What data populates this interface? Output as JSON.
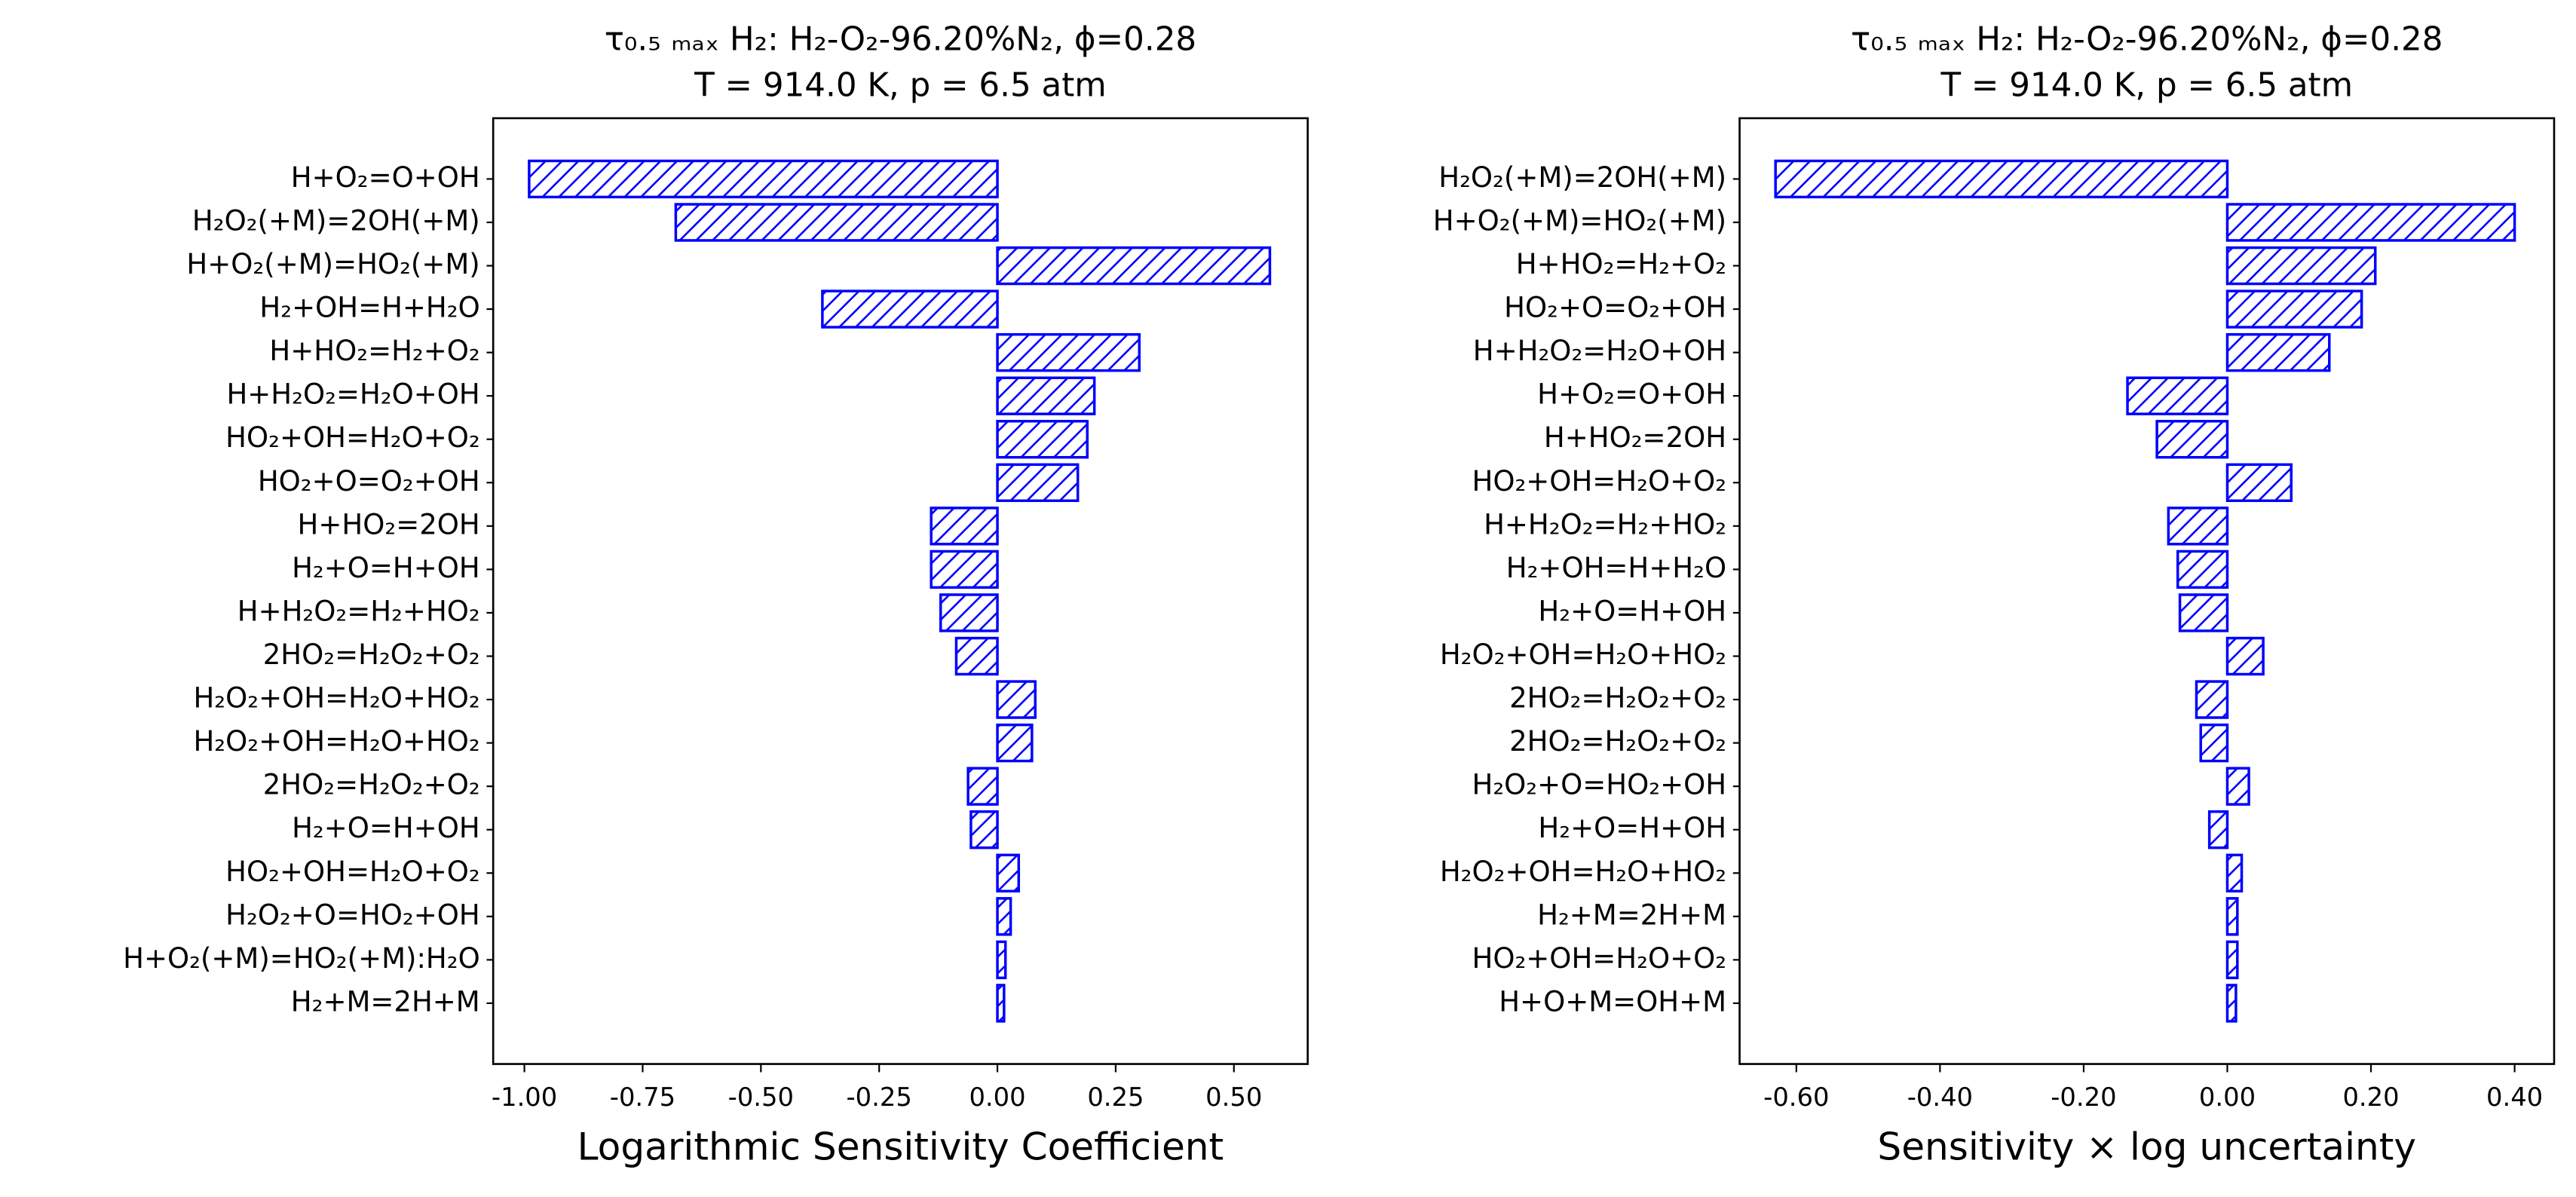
{
  "chart_data": [
    {
      "type": "bar",
      "orientation": "horizontal",
      "title": "τ₀.₅ ₘₐₓ H₂: H₂-O₂-96.20%N₂, ϕ=0.28",
      "subtitle": "T = 914.0 K, p = 6.5 atm",
      "x_label": "Logarithmic Sensitivity Coefficient",
      "color": "#0000ff",
      "hatch": "///",
      "categories": [
        "H+O₂=O+OH",
        "H₂O₂(+M)=2OH(+M)",
        "H+O₂(+M)=HO₂(+M)",
        "H₂+OH=H+H₂O",
        "H+HO₂=H₂+O₂",
        "H+H₂O₂=H₂O+OH",
        "HO₂+OH=H₂O+O₂",
        "HO₂+O=O₂+OH",
        "H+HO₂=2OH",
        "H₂+O=H+OH",
        "H+H₂O₂=H₂+HO₂",
        "2HO₂=H₂O₂+O₂",
        "H₂O₂+OH=H₂O+HO₂",
        "H₂O₂+OH=H₂O+HO₂",
        "2HO₂=H₂O₂+O₂",
        "H₂+O=H+OH",
        "HO₂+OH=H₂O+O₂",
        "H₂O₂+O=HO₂+OH",
        "H+O₂(+M)=HO₂(+M):H₂O",
        "H₂+M=2H+M"
      ],
      "values": [
        -0.99,
        -0.68,
        0.576,
        -0.37,
        0.3,
        0.205,
        0.19,
        0.17,
        -0.14,
        -0.14,
        -0.12,
        -0.087,
        0.08,
        0.073,
        -0.062,
        -0.056,
        0.045,
        0.028,
        0.017,
        0.014
      ],
      "xlim": [
        -1.066,
        0.656
      ],
      "xticks": [
        {
          "value": -1,
          "label": "-1.00"
        },
        {
          "value": -0.75,
          "label": "-0.75"
        },
        {
          "value": -0.5,
          "label": "-0.50"
        },
        {
          "value": -0.25,
          "label": "-0.25"
        },
        {
          "value": 0,
          "label": "0.00"
        },
        {
          "value": 0.25,
          "label": "0.25"
        },
        {
          "value": 0.5,
          "label": "0.50"
        }
      ]
    },
    {
      "type": "bar",
      "orientation": "horizontal",
      "title": "τ₀.₅ ₘₐₓ H₂: H₂-O₂-96.20%N₂, ϕ=0.28",
      "subtitle": "T = 914.0 K, p = 6.5 atm",
      "x_label": "Sensitivity × log uncertainty",
      "color": "#0000ff",
      "hatch": "///",
      "categories": [
        "H₂O₂(+M)=2OH(+M)",
        "H+O₂(+M)=HO₂(+M)",
        "H+HO₂=H₂+O₂",
        "HO₂+O=O₂+OH",
        "H+H₂O₂=H₂O+OH",
        "H+O₂=O+OH",
        "H+HO₂=2OH",
        "HO₂+OH=H₂O+O₂",
        "H+H₂O₂=H₂+HO₂",
        "H₂+OH=H+H₂O",
        "H₂+O=H+OH",
        "H₂O₂+OH=H₂O+HO₂",
        "2HO₂=H₂O₂+O₂",
        "2HO₂=H₂O₂+O₂",
        "H₂O₂+O=HO₂+OH",
        "H₂+O=H+OH",
        "H₂O₂+OH=H₂O+HO₂",
        "H₂+M=2H+M",
        "HO₂+OH=H₂O+O₂",
        "H+O+M=OH+M"
      ],
      "values": [
        -0.629,
        0.4,
        0.206,
        0.187,
        0.142,
        -0.139,
        -0.098,
        0.089,
        -0.082,
        -0.069,
        -0.066,
        0.05,
        -0.043,
        -0.037,
        0.03,
        -0.025,
        0.02,
        0.014,
        0.014,
        0.012
      ],
      "xlim": [
        -0.679,
        0.455
      ],
      "xticks": [
        {
          "value": -0.6,
          "label": "-0.60"
        },
        {
          "value": -0.4,
          "label": "-0.40"
        },
        {
          "value": -0.2,
          "label": "-0.20"
        },
        {
          "value": 0,
          "label": "0.00"
        },
        {
          "value": 0.2,
          "label": "0.20"
        },
        {
          "value": 0.4,
          "label": "0.40"
        }
      ]
    }
  ]
}
